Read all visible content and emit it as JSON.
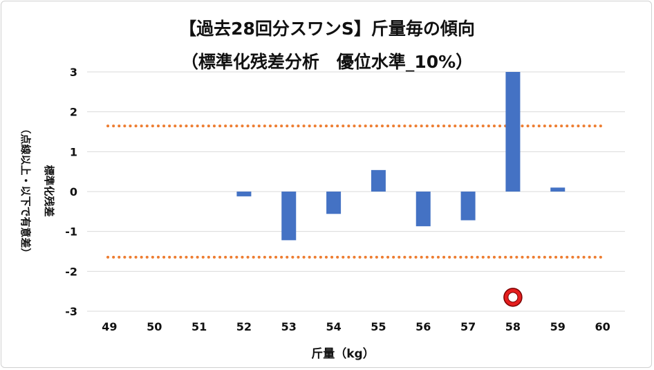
{
  "chart_data": {
    "type": "bar",
    "title": "【過去28回分スワンS】斤量毎の傾向",
    "subtitle": "（標準化残差分析　優位水準_10%）",
    "xlabel": "斤量（kg）",
    "ylabel_line1": "標準化残差",
    "ylabel_line2": "（点線以上・以下で有意差）",
    "categories": [
      "49",
      "50",
      "51",
      "52",
      "53",
      "54",
      "55",
      "56",
      "57",
      "58",
      "59",
      "60"
    ],
    "values": [
      0,
      0,
      0,
      -0.12,
      -1.22,
      -0.56,
      0.54,
      -0.87,
      -0.72,
      3.0,
      0.1,
      0
    ],
    "yticks": [
      "3",
      "2",
      "1",
      "0",
      "-1",
      "-2",
      "-3"
    ],
    "ylim": [
      -3,
      3
    ],
    "threshold_upper": 1.645,
    "threshold_lower": -1.645,
    "highlight": {
      "category": "58",
      "value": -2.65
    },
    "grid": true,
    "legend": "none",
    "colors": {
      "bar": "#4472c4",
      "threshold": "#ed7d31",
      "grid": "#d9d9d9",
      "marker_ring": "#e41e1e",
      "marker_stroke": "#7a0000"
    }
  }
}
